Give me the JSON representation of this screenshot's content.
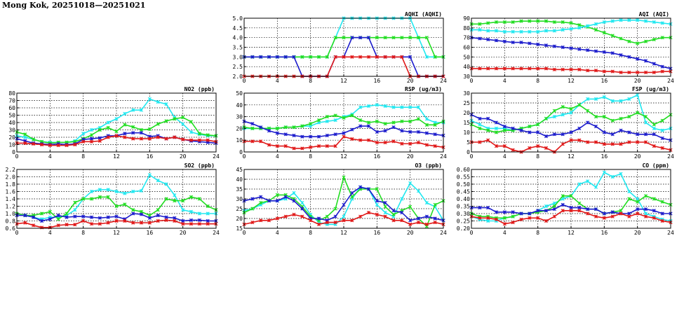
{
  "title": "Mong Kok, 20251018—20251021",
  "colors": {
    "blue": "#1c1ccc",
    "red": "#e01818",
    "green": "#22dd22",
    "cyan": "#22e8f0"
  },
  "chart_data": [
    {
      "title": "AQHI (AQHI)",
      "type": "line",
      "ylim": [
        2.0,
        5.0
      ],
      "yticks": [
        2.0,
        2.5,
        3.0,
        3.5,
        4.0,
        4.5,
        5.0
      ],
      "ytick_labels": [
        "2.0",
        "2.5",
        "3.0",
        "3.5",
        "4.0",
        "4.5",
        "5.0"
      ],
      "x_ticks": [
        0,
        4,
        8,
        12,
        16,
        20,
        24
      ],
      "grid": true,
      "series": [
        {
          "color": "cyan",
          "values": [
            3,
            3,
            3,
            3,
            3,
            3,
            3,
            3,
            3,
            3,
            3,
            4,
            5,
            5,
            5,
            5,
            5,
            5,
            5,
            5,
            5,
            4,
            3,
            3,
            3
          ]
        },
        {
          "color": "green",
          "values": [
            3,
            3,
            3,
            3,
            3,
            3,
            3,
            3,
            3,
            3,
            3,
            4,
            4,
            4,
            4,
            4,
            4,
            4,
            4,
            4,
            4,
            4,
            4,
            3,
            3
          ]
        },
        {
          "color": "blue",
          "values": [
            3,
            3,
            3,
            3,
            3,
            3,
            3,
            2,
            2,
            2,
            2,
            3,
            3,
            4,
            4,
            4,
            3,
            3,
            3,
            3,
            3,
            2,
            2,
            2,
            2
          ]
        },
        {
          "color": "red",
          "values": [
            2,
            2,
            2,
            2,
            2,
            2,
            2,
            2,
            2,
            2,
            2,
            3,
            3,
            3,
            3,
            3,
            3,
            3,
            3,
            3,
            2,
            2,
            2,
            2,
            2
          ]
        }
      ]
    },
    {
      "title": "AQI (AQI)",
      "type": "line",
      "ylim": [
        30,
        90
      ],
      "yticks": [
        30,
        40,
        50,
        60,
        70,
        80,
        90
      ],
      "ytick_labels": [
        "30",
        "40",
        "50",
        "60",
        "70",
        "80",
        "90"
      ],
      "x_ticks": [
        0,
        4,
        8,
        12,
        16,
        20,
        24
      ],
      "grid": true,
      "series": [
        {
          "color": "green",
          "values": [
            84,
            84,
            85,
            86,
            86,
            86,
            87,
            87,
            87,
            87,
            86,
            86,
            85,
            83,
            81,
            78,
            75,
            72,
            69,
            66,
            64,
            66,
            68,
            70,
            70
          ]
        },
        {
          "color": "cyan",
          "values": [
            78,
            78,
            77,
            77,
            76,
            76,
            76,
            76,
            76,
            77,
            77,
            78,
            79,
            80,
            82,
            84,
            86,
            87,
            88,
            88,
            88,
            87,
            86,
            85,
            84
          ]
        },
        {
          "color": "blue",
          "values": [
            70,
            69,
            68,
            67,
            66,
            65,
            65,
            64,
            63,
            62,
            61,
            60,
            59,
            58,
            57,
            56,
            55,
            54,
            52,
            50,
            48,
            46,
            43,
            40,
            38
          ]
        },
        {
          "color": "red",
          "values": [
            38,
            38,
            38,
            38,
            38,
            38,
            38,
            38,
            38,
            38,
            37,
            37,
            37,
            37,
            36,
            36,
            35,
            35,
            34,
            34,
            34,
            34,
            34,
            35,
            35
          ]
        }
      ]
    },
    {
      "title": "NO2 (ppb)",
      "type": "line",
      "ylim": [
        0,
        80
      ],
      "yticks": [
        0,
        10,
        20,
        30,
        40,
        50,
        60,
        70,
        80
      ],
      "ytick_labels": [
        "0",
        "10",
        "20",
        "30",
        "40",
        "50",
        "60",
        "70",
        "80"
      ],
      "x_ticks": [
        0,
        4,
        8,
        12,
        16,
        20,
        24
      ],
      "grid": true,
      "series": [
        {
          "color": "cyan",
          "values": [
            22,
            20,
            17,
            14,
            13,
            13,
            13,
            15,
            25,
            30,
            33,
            40,
            45,
            52,
            57,
            57,
            72,
            68,
            65,
            47,
            38,
            27,
            24,
            22,
            22
          ]
        },
        {
          "color": "green",
          "values": [
            27,
            24,
            17,
            14,
            12,
            13,
            13,
            14,
            18,
            23,
            30,
            33,
            28,
            37,
            34,
            30,
            31,
            38,
            42,
            45,
            47,
            41,
            25,
            23,
            22
          ]
        },
        {
          "color": "blue",
          "values": [
            18,
            15,
            12,
            11,
            10,
            11,
            10,
            11,
            17,
            18,
            19,
            22,
            22,
            25,
            26,
            26,
            21,
            22,
            18,
            20,
            17,
            15,
            14,
            13,
            12
          ]
        },
        {
          "color": "red",
          "values": [
            12,
            12,
            11,
            10,
            9,
            9,
            9,
            10,
            14,
            14,
            15,
            20,
            22,
            20,
            18,
            18,
            18,
            20,
            18,
            20,
            17,
            16,
            16,
            16,
            14
          ]
        }
      ]
    },
    {
      "title": "RSP (ug/m3)",
      "type": "line",
      "ylim": [
        0,
        50
      ],
      "yticks": [
        0,
        10,
        20,
        30,
        40,
        50
      ],
      "ytick_labels": [
        "0",
        "10",
        "20",
        "30",
        "40",
        "50"
      ],
      "x_ticks": [
        0,
        4,
        8,
        12,
        16,
        20,
        24
      ],
      "grid": true,
      "series": [
        {
          "color": "cyan",
          "values": [
            20,
            20,
            20,
            20,
            20,
            21,
            21,
            22,
            22,
            25,
            26,
            27,
            30,
            32,
            38,
            39,
            40,
            39,
            38,
            38,
            38,
            38,
            28,
            25,
            25
          ]
        },
        {
          "color": "green",
          "values": [
            21,
            20,
            20,
            20,
            20,
            21,
            21,
            22,
            24,
            27,
            30,
            31,
            29,
            31,
            27,
            25,
            26,
            24,
            25,
            26,
            26,
            28,
            23,
            23,
            26
          ]
        },
        {
          "color": "blue",
          "values": [
            26,
            24,
            21,
            18,
            16,
            15,
            14,
            13,
            13,
            13,
            14,
            15,
            16,
            19,
            22,
            22,
            17,
            18,
            21,
            18,
            17,
            17,
            16,
            15,
            14
          ]
        },
        {
          "color": "red",
          "values": [
            9,
            9,
            9,
            6,
            5,
            5,
            3,
            3,
            4,
            5,
            5,
            5,
            13,
            11,
            10,
            10,
            8,
            8,
            9,
            7,
            7,
            8,
            6,
            5,
            4
          ]
        }
      ]
    },
    {
      "title": "FSP (ug/m3)",
      "type": "line",
      "ylim": [
        0,
        30
      ],
      "yticks": [
        0,
        5,
        10,
        15,
        20,
        25,
        30
      ],
      "ytick_labels": [
        "0",
        "5",
        "10",
        "15",
        "20",
        "25",
        "30"
      ],
      "x_ticks": [
        0,
        4,
        8,
        12,
        16,
        20,
        24
      ],
      "grid": true,
      "series": [
        {
          "color": "cyan",
          "values": [
            16,
            14,
            12,
            12,
            12,
            11,
            12,
            13,
            14,
            17,
            18,
            19,
            20,
            24,
            27,
            27,
            28,
            26,
            26,
            27,
            29,
            15,
            12,
            11,
            12
          ]
        },
        {
          "color": "green",
          "values": [
            14,
            12,
            11,
            10,
            11,
            11,
            12,
            13,
            14,
            17,
            21,
            23,
            22,
            24,
            21,
            18,
            18,
            16,
            17,
            18,
            20,
            18,
            14,
            16,
            19
          ]
        },
        {
          "color": "blue",
          "values": [
            19,
            17,
            17,
            15,
            13,
            12,
            11,
            10,
            10,
            8,
            9,
            9,
            10,
            12,
            15,
            13,
            10,
            9,
            11,
            10,
            9,
            9,
            9,
            7,
            6
          ]
        },
        {
          "color": "red",
          "values": [
            5,
            5,
            6,
            3,
            3,
            1,
            0,
            2,
            3,
            2,
            0,
            4,
            6,
            6,
            5,
            5,
            4,
            4,
            4,
            5,
            5,
            5,
            3,
            2,
            1
          ]
        }
      ]
    },
    {
      "title": "SO2 (ppb)",
      "type": "line",
      "ylim": [
        0.6,
        2.2
      ],
      "yticks": [
        0.6,
        0.8,
        1.0,
        1.2,
        1.4,
        1.6,
        1.8,
        2.0,
        2.2
      ],
      "ytick_labels": [
        "0.6",
        "0.8",
        "1.0",
        "1.2",
        "1.4",
        "1.6",
        "1.8",
        "2.0",
        "2.2"
      ],
      "x_ticks": [
        0,
        4,
        8,
        12,
        16,
        20,
        24
      ],
      "grid": true,
      "series": [
        {
          "color": "cyan",
          "values": [
            1.0,
            0.95,
            0.9,
            0.85,
            0.9,
            0.9,
            0.95,
            1.1,
            1.4,
            1.6,
            1.65,
            1.65,
            1.6,
            1.55,
            1.6,
            1.62,
            2.05,
            1.9,
            1.8,
            1.5,
            1.1,
            1.05,
            1.0,
            1.0,
            1.0
          ]
        },
        {
          "color": "green",
          "values": [
            1.0,
            0.95,
            0.95,
            1.0,
            1.05,
            0.85,
            1.0,
            1.3,
            1.4,
            1.4,
            1.45,
            1.45,
            1.2,
            1.25,
            1.1,
            1.05,
            0.95,
            1.1,
            1.4,
            1.35,
            1.35,
            1.45,
            1.4,
            1.2,
            1.1
          ]
        },
        {
          "color": "blue",
          "values": [
            0.95,
            0.95,
            0.9,
            0.8,
            0.85,
            0.95,
            0.9,
            0.92,
            0.92,
            0.9,
            0.88,
            0.9,
            0.92,
            0.85,
            1.0,
            0.98,
            0.88,
            0.95,
            0.9,
            0.88,
            0.8,
            0.82,
            0.82,
            0.8,
            0.8
          ]
        },
        {
          "color": "red",
          "values": [
            0.72,
            0.75,
            0.68,
            0.62,
            0.62,
            0.68,
            0.7,
            0.7,
            0.8,
            0.72,
            0.72,
            0.75,
            0.8,
            0.8,
            0.75,
            0.75,
            0.75,
            0.8,
            0.82,
            0.8,
            0.72,
            0.72,
            0.72,
            0.72,
            0.72
          ]
        }
      ]
    },
    {
      "title": "O3 (ppb)",
      "type": "line",
      "ylim": [
        15,
        45
      ],
      "yticks": [
        15,
        20,
        25,
        30,
        35,
        40,
        45
      ],
      "ytick_labels": [
        "15",
        "20",
        "25",
        "30",
        "35",
        "40",
        "45"
      ],
      "x_ticks": [
        0,
        4,
        8,
        12,
        16,
        20,
        24
      ],
      "grid": true,
      "series": [
        {
          "color": "cyan",
          "values": [
            24,
            25,
            27,
            29,
            29,
            30,
            33,
            28,
            22,
            18,
            17,
            17,
            21,
            30,
            36,
            35,
            27,
            23,
            21,
            30,
            38,
            34,
            28,
            26,
            19
          ]
        },
        {
          "color": "green",
          "values": [
            23,
            25,
            28,
            29,
            32,
            32,
            30,
            26,
            21,
            19,
            21,
            25,
            41,
            31,
            35,
            35,
            35,
            26,
            22,
            24,
            26,
            20,
            16,
            27,
            29
          ]
        },
        {
          "color": "blue",
          "values": [
            29,
            30,
            31,
            29,
            29,
            31,
            29,
            25,
            20,
            20,
            19,
            21,
            27,
            33,
            36,
            35,
            29,
            28,
            24,
            23,
            19,
            20,
            21,
            20,
            19
          ]
        },
        {
          "color": "red",
          "values": [
            17,
            18,
            19,
            19,
            20,
            21,
            22,
            21,
            19,
            17,
            18,
            18,
            19,
            19,
            21,
            23,
            22,
            21,
            19,
            19,
            17,
            18,
            17,
            18,
            17
          ]
        }
      ]
    },
    {
      "title": "CO (ppm)",
      "type": "line",
      "ylim": [
        0.2,
        0.6
      ],
      "yticks": [
        0.2,
        0.25,
        0.3,
        0.35,
        0.4,
        0.45,
        0.5,
        0.55,
        0.6
      ],
      "ytick_labels": [
        "0.20",
        "0.25",
        "0.30",
        "0.35",
        "0.40",
        "0.45",
        "0.50",
        "0.55",
        "0.60"
      ],
      "x_ticks": [
        0,
        4,
        8,
        12,
        16,
        20,
        24
      ],
      "grid": true,
      "series": [
        {
          "color": "cyan",
          "values": [
            0.28,
            0.26,
            0.25,
            0.25,
            0.27,
            0.28,
            0.3,
            0.3,
            0.32,
            0.35,
            0.37,
            0.4,
            0.42,
            0.5,
            0.52,
            0.48,
            0.58,
            0.55,
            0.57,
            0.45,
            0.4,
            0.3,
            0.28,
            0.26,
            0.25
          ]
        },
        {
          "color": "green",
          "values": [
            0.3,
            0.28,
            0.28,
            0.27,
            0.27,
            0.28,
            0.3,
            0.3,
            0.31,
            0.32,
            0.35,
            0.42,
            0.42,
            0.37,
            0.33,
            0.33,
            0.3,
            0.31,
            0.32,
            0.4,
            0.38,
            0.42,
            0.4,
            0.38,
            0.36
          ]
        },
        {
          "color": "blue",
          "values": [
            0.34,
            0.34,
            0.34,
            0.31,
            0.31,
            0.31,
            0.3,
            0.3,
            0.32,
            0.32,
            0.33,
            0.36,
            0.34,
            0.34,
            0.33,
            0.33,
            0.3,
            0.31,
            0.3,
            0.3,
            0.33,
            0.33,
            0.32,
            0.3,
            0.3
          ]
        },
        {
          "color": "red",
          "values": [
            0.28,
            0.27,
            0.27,
            0.26,
            0.23,
            0.24,
            0.26,
            0.27,
            0.27,
            0.25,
            0.28,
            0.32,
            0.32,
            0.32,
            0.3,
            0.28,
            0.27,
            0.28,
            0.3,
            0.28,
            0.3,
            0.28,
            0.27,
            0.25,
            0.24
          ]
        }
      ]
    }
  ]
}
